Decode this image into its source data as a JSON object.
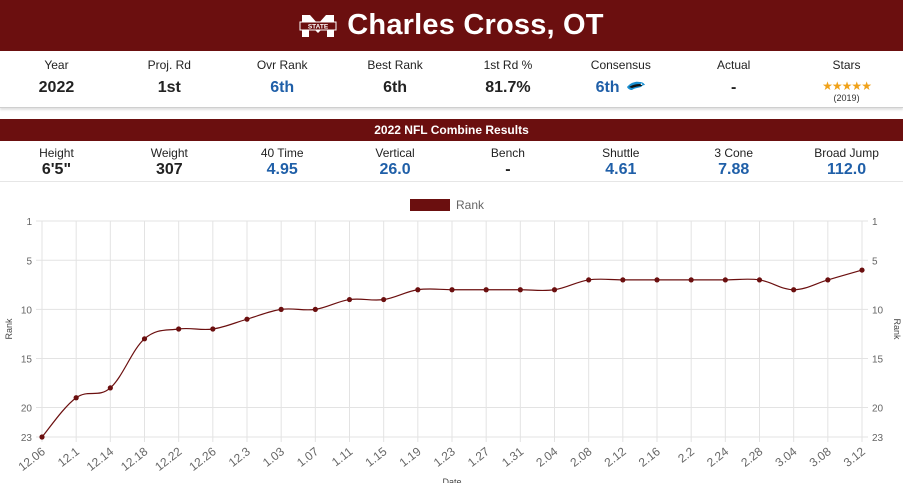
{
  "header": {
    "player_name": "Charles Cross, OT",
    "logo": "mississippi-state-logo",
    "logo_text": "STATE"
  },
  "info": [
    {
      "label": "Year",
      "value": "2022"
    },
    {
      "label": "Proj. Rd",
      "value": "1st"
    },
    {
      "label": "Ovr Rank",
      "value": "6th"
    },
    {
      "label": "Best Rank",
      "value": "6th"
    },
    {
      "label": "1st Rd %",
      "value": "81.7%"
    },
    {
      "label": "Consensus",
      "value": "6th"
    },
    {
      "label": "Actual",
      "value": "-"
    },
    {
      "label": "Stars",
      "value": "★★★★★",
      "sub": "(2019)"
    }
  ],
  "combine": {
    "title": "2022 NFL Combine Results",
    "items": [
      {
        "label": "Height",
        "value": "6'5\""
      },
      {
        "label": "Weight",
        "value": "307"
      },
      {
        "label": "40 Time",
        "value": "4.95"
      },
      {
        "label": "Vertical",
        "value": "26.0"
      },
      {
        "label": "Bench",
        "value": "-"
      },
      {
        "label": "Shuttle",
        "value": "4.61"
      },
      {
        "label": "3 Cone",
        "value": "7.88"
      },
      {
        "label": "Broad Jump",
        "value": "112.0"
      }
    ]
  },
  "colors": {
    "brand": "#6b0f0f",
    "accent_blue": "#1f5fa8",
    "star": "#f0a21a",
    "line": "#6b0f0f"
  },
  "chart_data": {
    "type": "line",
    "legend": "Rank",
    "legend_position": "top-center",
    "ylabel": "Rank",
    "xlabel": "Date",
    "y_reversed": true,
    "ylim": [
      1,
      23
    ],
    "y_ticks": [
      1,
      5,
      10,
      15,
      20,
      23
    ],
    "grid": true,
    "categories": [
      "12.06",
      "12.1",
      "12.14",
      "12.18",
      "12.22",
      "12.26",
      "12.3",
      "1.03",
      "1.07",
      "1.11",
      "1.15",
      "1.19",
      "1.23",
      "1.27",
      "1.31",
      "2.04",
      "2.08",
      "2.12",
      "2.16",
      "2.2",
      "2.24",
      "2.28",
      "3.04",
      "3.08",
      "3.12"
    ],
    "series": [
      {
        "name": "Rank",
        "values": [
          23,
          19,
          18,
          13,
          12,
          12,
          11,
          10,
          10,
          9,
          9,
          8,
          8,
          8,
          8,
          8,
          7,
          7,
          7,
          7,
          7,
          7,
          8,
          7,
          6
        ]
      }
    ]
  }
}
